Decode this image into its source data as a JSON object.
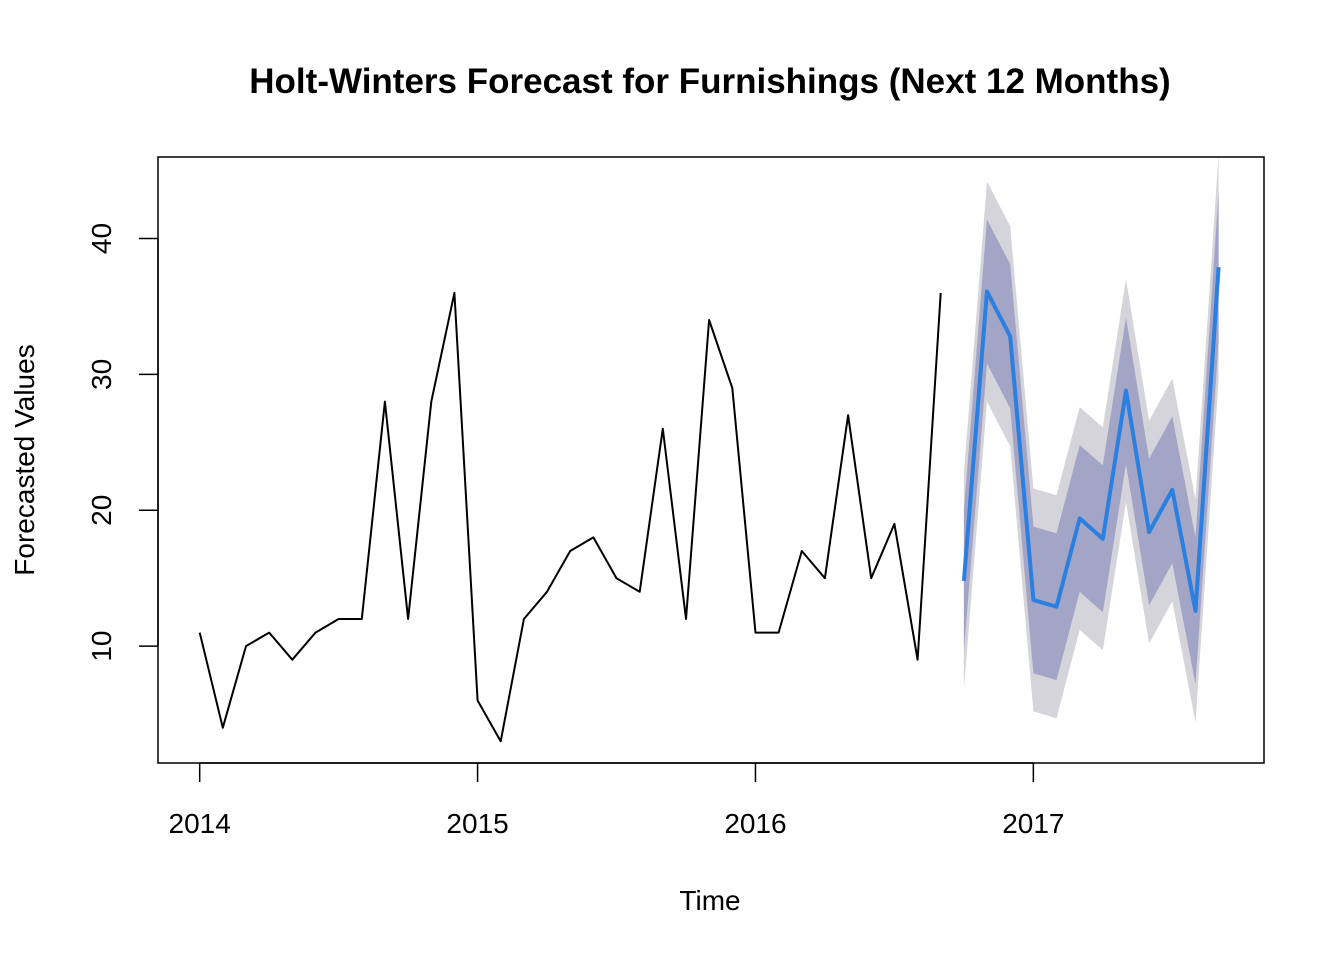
{
  "chart_data": {
    "type": "line",
    "title": "Holt-Winters Forecast for Furnishings (Next 12 Months)",
    "xlabel": "Time",
    "ylabel": "Forecasted Values",
    "xlim": [
      2013.85,
      2017.83
    ],
    "ylim": [
      1.4,
      46.0
    ],
    "x_ticks": [
      2014,
      2015,
      2016,
      2017
    ],
    "y_ticks": [
      10,
      20,
      30,
      40
    ],
    "grid": false,
    "legend": "none",
    "colors": {
      "observed": "#000000",
      "forecast": "#2b7fde",
      "band80": "#a3a5c6",
      "band95": "#d4d4da"
    },
    "series": [
      {
        "x": [
          "2014-01",
          "2014-02",
          "2014-03",
          "2014-04",
          "2014-05",
          "2014-06",
          "2014-07",
          "2014-08",
          "2014-09",
          "2014-10",
          "2014-11",
          "2014-12",
          "2015-01",
          "2015-02",
          "2015-03",
          "2015-04",
          "2015-05",
          "2015-06",
          "2015-07",
          "2015-08",
          "2015-09",
          "2015-10",
          "2015-11",
          "2015-12",
          "2016-01",
          "2016-02",
          "2016-03",
          "2016-04",
          "2016-05",
          "2016-06",
          "2016-07",
          "2016-08",
          "2016-09"
        ],
        "values": [
          11,
          4,
          10,
          11,
          9,
          11,
          12,
          12,
          28,
          12,
          28,
          36,
          6,
          3,
          12,
          14,
          17,
          18,
          15,
          14,
          26,
          12,
          34,
          29,
          11,
          11,
          17,
          15,
          27,
          15,
          19,
          9,
          36
        ]
      },
      {
        "x": [
          "2016-10",
          "2016-11",
          "2016-12",
          "2017-01",
          "2017-02",
          "2017-03",
          "2017-04",
          "2017-05",
          "2017-06",
          "2017-07",
          "2017-08",
          "2017-09"
        ],
        "values": [
          14.8,
          36.1,
          32.8,
          13.4,
          12.9,
          19.4,
          17.9,
          28.8,
          18.4,
          21.5,
          12.6,
          37.9
        ],
        "lo80": [
          9.6,
          30.8,
          27.5,
          8.0,
          7.5,
          14.0,
          12.5,
          23.4,
          13.0,
          16.1,
          7.2,
          32.4
        ],
        "hi80": [
          20.0,
          41.4,
          38.1,
          18.8,
          18.3,
          24.8,
          23.3,
          34.2,
          23.8,
          26.9,
          18.0,
          43.4
        ],
        "lo95": [
          6.8,
          28.0,
          24.7,
          5.2,
          4.7,
          11.2,
          9.7,
          20.6,
          10.2,
          13.3,
          4.4,
          29.6
        ],
        "hi95": [
          22.8,
          44.2,
          40.9,
          21.6,
          21.1,
          27.6,
          26.1,
          37.0,
          26.6,
          29.7,
          20.8,
          46.2
        ]
      }
    ]
  }
}
